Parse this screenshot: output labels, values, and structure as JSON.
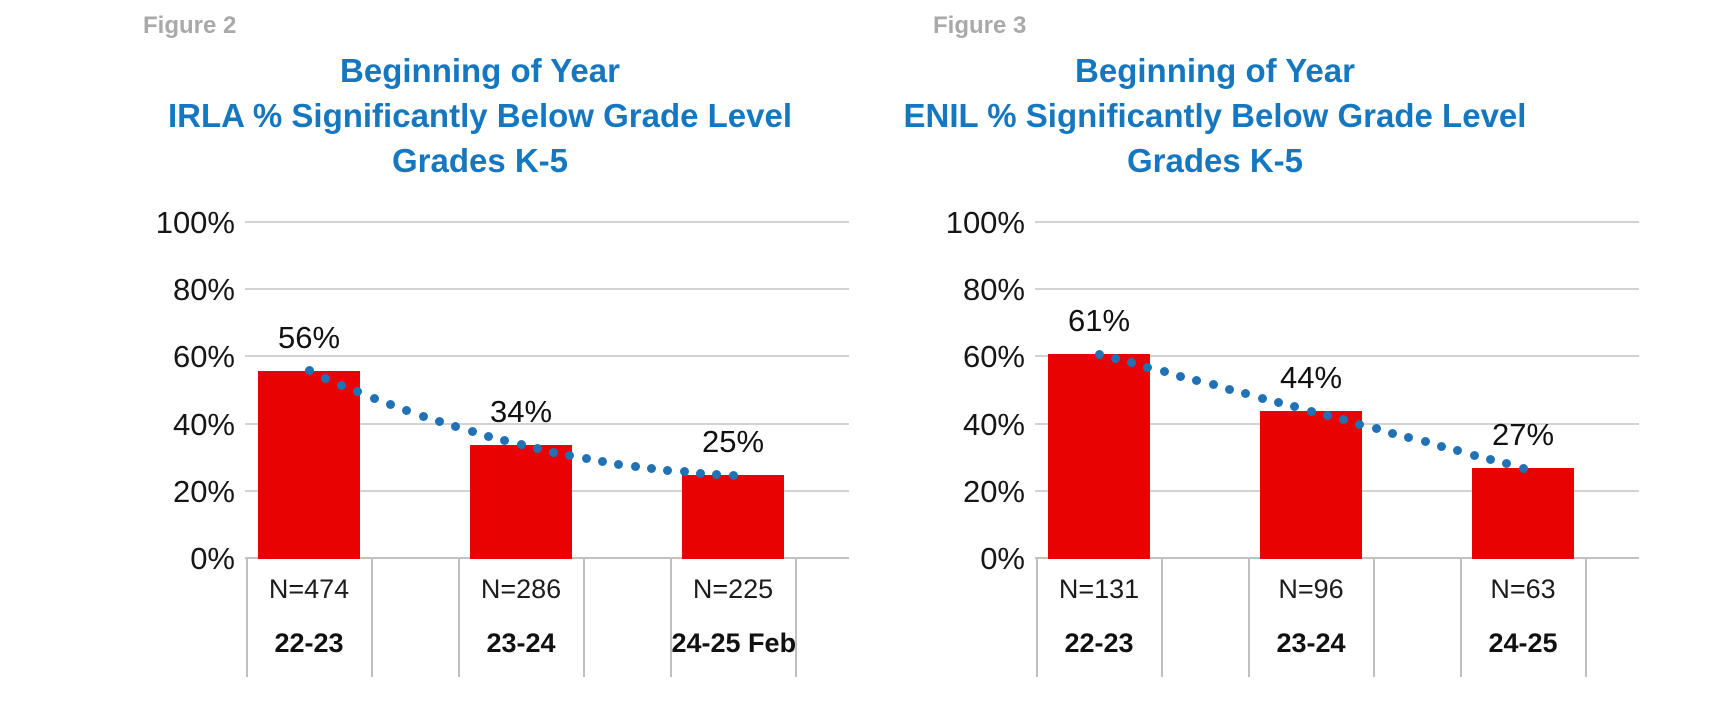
{
  "colors": {
    "bar": "#e80202",
    "dot": "#2171b5",
    "title": "#1577c0",
    "figure_label": "#a9a9a9",
    "gridline": "#d2d2d2",
    "axis_line": "#c2c2c2",
    "separator": "#bfbfbf"
  },
  "chart_data": [
    {
      "type": "bar",
      "figure_label": "Figure 2",
      "title": "Beginning of Year IRLA % Significantly Below Grade Level Grades K-5",
      "title_lines": [
        "Beginning of Year",
        "IRLA % Significantly Below Grade Level",
        "Grades K-5"
      ],
      "categories": [
        "22-23",
        "23-24",
        "24-25 Feb"
      ],
      "n_labels": [
        "N=474",
        "N=286",
        "N=225"
      ],
      "values": [
        56,
        34,
        25
      ],
      "value_labels": [
        "56%",
        "34%",
        "25%"
      ],
      "y_tick_values": [
        0,
        20,
        40,
        60,
        80,
        100
      ],
      "y_tick_labels": [
        "0%",
        "20%",
        "40%",
        "60%",
        "80%",
        "100%"
      ],
      "ylim": [
        0,
        100
      ],
      "xlabel": "",
      "ylabel": "",
      "grid": true,
      "legend": "none",
      "trendline": {
        "style": "dotted",
        "through_values": [
          56,
          34,
          25
        ]
      }
    },
    {
      "type": "bar",
      "figure_label": "Figure 3",
      "title": "Beginning of Year ENIL % Significantly Below Grade Level Grades K-5",
      "title_lines": [
        "Beginning of Year",
        "ENIL % Significantly Below Grade Level",
        "Grades K-5"
      ],
      "categories": [
        "22-23",
        "23-24",
        "24-25"
      ],
      "n_labels": [
        "N=131",
        "N=96",
        "N=63"
      ],
      "values": [
        61,
        44,
        27
      ],
      "value_labels": [
        "61%",
        "44%",
        "27%"
      ],
      "y_tick_values": [
        0,
        20,
        40,
        60,
        80,
        100
      ],
      "y_tick_labels": [
        "0%",
        "20%",
        "40%",
        "60%",
        "80%",
        "100%"
      ],
      "ylim": [
        0,
        100
      ],
      "xlabel": "",
      "ylabel": "",
      "grid": true,
      "legend": "none",
      "trendline": {
        "style": "dotted",
        "through_values": [
          61,
          44,
          27
        ]
      }
    }
  ]
}
